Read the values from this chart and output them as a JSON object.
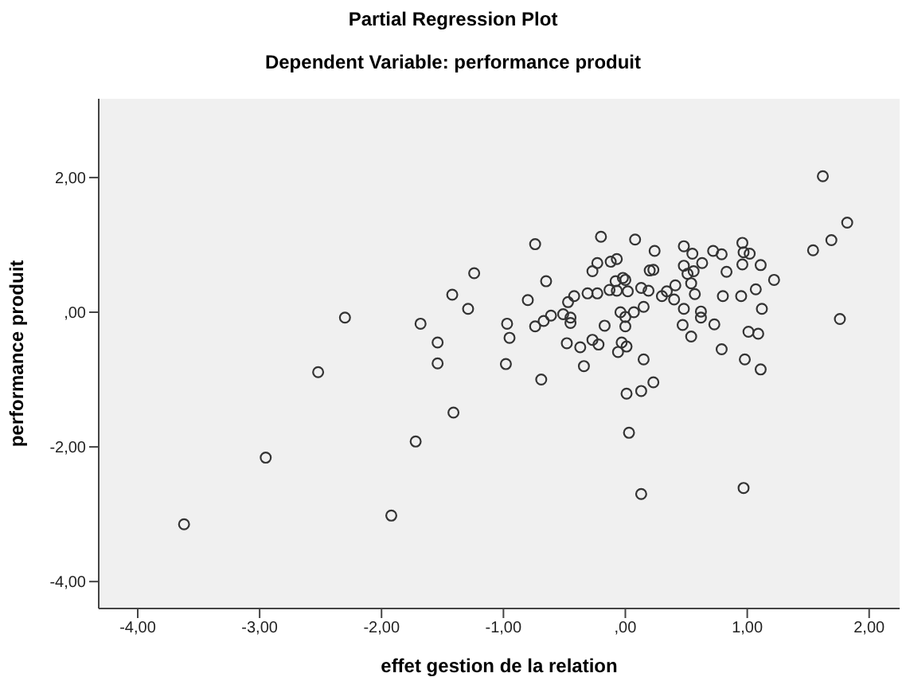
{
  "chart_data": {
    "type": "scatter",
    "title": "Partial Regression Plot",
    "subtitle": "Dependent Variable: performance produit",
    "xlabel": "effet gestion de la relation",
    "ylabel": "performance produit",
    "xlim": [
      -4.32,
      2.25
    ],
    "ylim": [
      -4.4,
      3.17
    ],
    "xticks": [
      {
        "value": -4,
        "label": "-4,00"
      },
      {
        "value": -3,
        "label": "-3,00"
      },
      {
        "value": -2,
        "label": "-2,00"
      },
      {
        "value": -1,
        "label": "-1,00"
      },
      {
        "value": 0,
        "label": ",00"
      },
      {
        "value": 1,
        "label": "1,00"
      },
      {
        "value": 2,
        "label": "2,00"
      }
    ],
    "yticks": [
      {
        "value": -4,
        "label": "-4,00"
      },
      {
        "value": -2,
        "label": "-2,00"
      },
      {
        "value": 0,
        "label": ",00"
      },
      {
        "value": 2,
        "label": "2,00"
      }
    ],
    "grid": false,
    "legend": false,
    "marker": "circle",
    "series": [
      {
        "color": "#333333",
        "x": [
          -3.62,
          -2.95,
          -2.52,
          -2.3,
          -1.92,
          -1.72,
          -1.68,
          -1.54,
          -1.54,
          -1.42,
          -1.41,
          -1.29,
          -1.24,
          -0.74,
          -0.8,
          -0.65,
          -0.97,
          -0.95,
          -0.98,
          -0.69,
          -0.74,
          -0.67,
          -0.61,
          -0.51,
          -0.47,
          -0.42,
          -0.45,
          -0.45,
          -0.48,
          -0.37,
          -0.34,
          -0.31,
          -0.23,
          -0.27,
          -0.23,
          -0.2,
          -0.17,
          -0.27,
          -0.22,
          -0.13,
          -0.12,
          -0.07,
          -0.08,
          -0.02,
          0.0,
          -0.07,
          0.02,
          0.08,
          -0.04,
          0.0,
          0.0,
          -0.03,
          0.01,
          -0.06,
          0.07,
          0.15,
          0.13,
          0.19,
          0.2,
          0.23,
          0.24,
          0.15,
          0.01,
          0.13,
          0.23,
          0.3,
          0.34,
          0.4,
          0.41,
          0.48,
          0.48,
          0.55,
          0.51,
          0.56,
          0.63,
          0.54,
          0.57,
          0.48,
          0.47,
          0.54,
          0.62,
          0.62,
          0.73,
          0.72,
          0.79,
          0.83,
          0.8,
          0.79,
          0.96,
          0.97,
          1.02,
          0.96,
          0.95,
          1.07,
          1.11,
          1.22,
          1.12,
          1.01,
          1.09,
          0.98,
          1.11,
          1.54,
          1.69,
          1.82,
          1.62,
          1.76,
          0.03,
          0.13,
          0.97
        ],
        "values": [
          -3.15,
          -2.16,
          -0.89,
          -0.08,
          -3.02,
          -1.92,
          -0.17,
          -0.45,
          -0.76,
          0.26,
          -1.49,
          0.05,
          0.58,
          1.01,
          0.18,
          0.46,
          -0.17,
          -0.38,
          -0.77,
          -1.0,
          -0.21,
          -0.13,
          -0.05,
          -0.03,
          0.15,
          0.24,
          -0.08,
          -0.16,
          -0.46,
          -0.52,
          -0.8,
          0.28,
          0.28,
          0.61,
          0.73,
          1.12,
          -0.2,
          -0.41,
          -0.48,
          0.33,
          0.75,
          0.79,
          0.46,
          0.51,
          0.48,
          0.32,
          0.31,
          1.08,
          0.0,
          -0.07,
          -0.21,
          -0.45,
          -0.51,
          -0.59,
          0.0,
          0.08,
          0.36,
          0.32,
          0.62,
          0.63,
          0.91,
          -0.7,
          -1.21,
          -1.17,
          -1.04,
          0.24,
          0.31,
          0.19,
          0.4,
          0.98,
          0.69,
          0.87,
          0.57,
          0.61,
          0.73,
          0.43,
          0.27,
          0.05,
          -0.19,
          -0.36,
          0.01,
          -0.08,
          -0.18,
          0.91,
          0.86,
          0.6,
          0.24,
          -0.55,
          1.03,
          0.89,
          0.87,
          0.71,
          0.24,
          0.34,
          0.7,
          0.48,
          0.05,
          -0.29,
          -0.32,
          -0.7,
          -0.85,
          0.92,
          1.07,
          1.33,
          2.02,
          -0.1,
          -1.79,
          -2.7,
          -2.61
        ]
      }
    ]
  }
}
